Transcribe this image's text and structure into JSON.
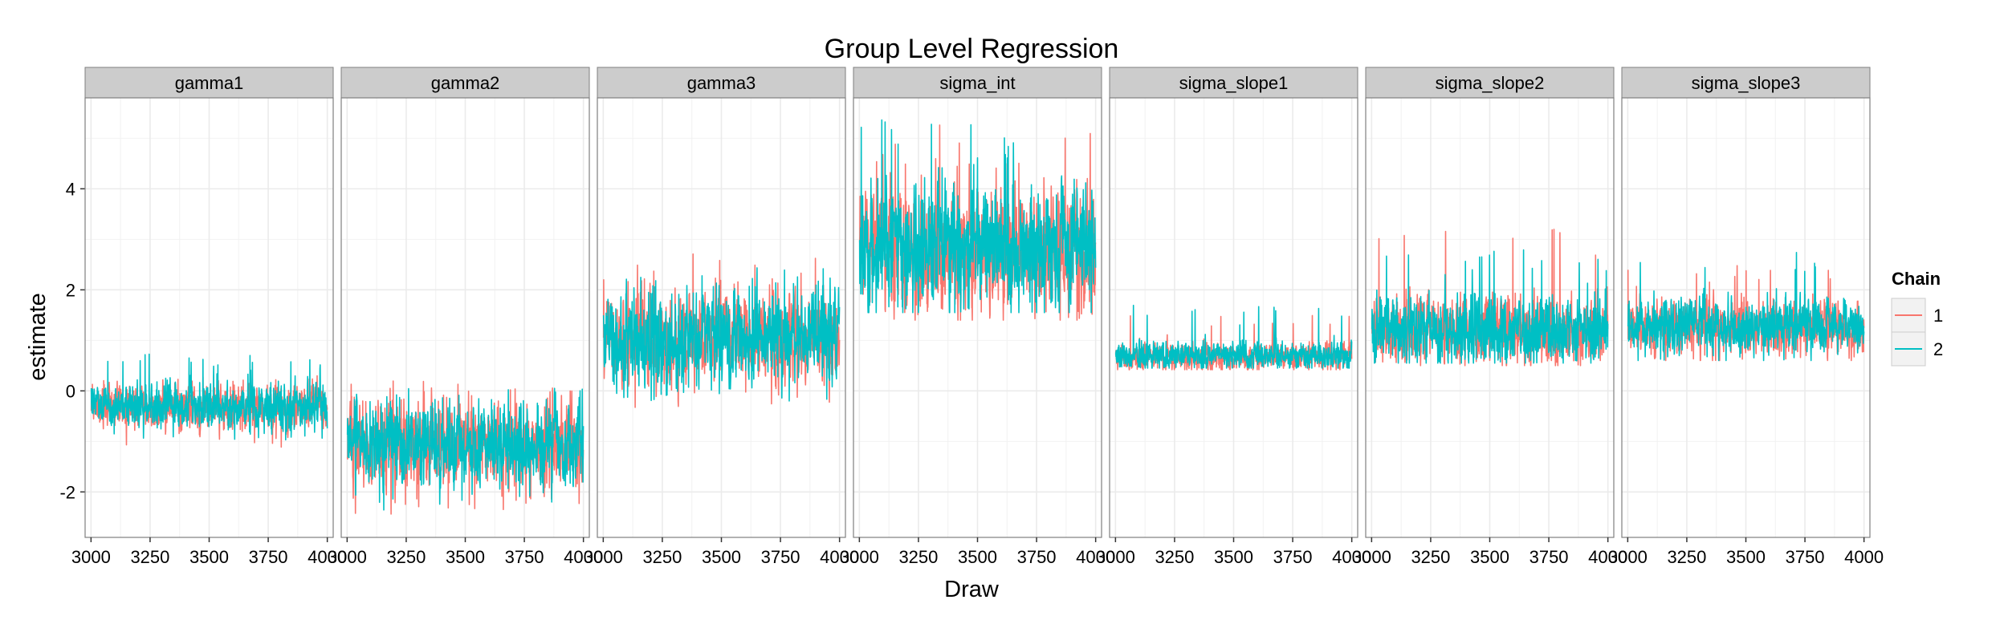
{
  "chart_data": {
    "type": "line",
    "title": "Group Level Regression",
    "xlabel": "Draw",
    "ylabel": "estimate",
    "xlim": [
      2975,
      4025
    ],
    "ylim": [
      -2.9,
      5.8
    ],
    "x_ticks": [
      3000,
      3250,
      3500,
      3750,
      4000
    ],
    "x_tick_labels": [
      "3000",
      "3250",
      "3500",
      "3750",
      "4000"
    ],
    "y_ticks": [
      -2,
      0,
      2,
      4
    ],
    "y_tick_labels": [
      "-2",
      "0",
      "2",
      "4"
    ],
    "grid": true,
    "draws": {
      "start": 3001,
      "end": 4000
    },
    "legend": {
      "title": "Chain",
      "position": "right",
      "entries": [
        {
          "label": "1",
          "color": "#F8766D"
        },
        {
          "label": "2",
          "color": "#00BFC4"
        }
      ]
    },
    "panels": [
      {
        "name": "gamma1",
        "chains": [
          {
            "chain": "1",
            "color": "#F8766D",
            "center": -0.32,
            "spread": 0.2,
            "min": -1.15,
            "max": 0.3
          },
          {
            "chain": "2",
            "color": "#00BFC4",
            "center": -0.3,
            "spread": 0.2,
            "min": -1.0,
            "max": 0.75
          }
        ]
      },
      {
        "name": "gamma2",
        "chains": [
          {
            "chain": "1",
            "color": "#F8766D",
            "center": -1.1,
            "spread": 0.38,
            "min": -2.45,
            "max": 0.2
          },
          {
            "chain": "2",
            "color": "#00BFC4",
            "center": -1.1,
            "spread": 0.35,
            "min": -2.5,
            "max": 0.05
          }
        ]
      },
      {
        "name": "gamma3",
        "chains": [
          {
            "chain": "1",
            "color": "#F8766D",
            "center": 1.05,
            "spread": 0.4,
            "min": -0.4,
            "max": 2.8
          },
          {
            "chain": "2",
            "color": "#00BFC4",
            "center": 1.05,
            "spread": 0.42,
            "min": -0.55,
            "max": 2.45
          }
        ]
      },
      {
        "name": "sigma_int",
        "chains": [
          {
            "chain": "1",
            "color": "#F8766D",
            "center": 2.75,
            "spread": 0.55,
            "min": 1.4,
            "max": 5.3
          },
          {
            "chain": "2",
            "color": "#00BFC4",
            "center": 2.8,
            "spread": 0.55,
            "min": 1.55,
            "max": 5.4
          }
        ]
      },
      {
        "name": "sigma_slope1",
        "chains": [
          {
            "chain": "1",
            "color": "#F8766D",
            "center": 0.68,
            "spread": 0.12,
            "min": 0.42,
            "max": 1.5
          },
          {
            "chain": "2",
            "color": "#00BFC4",
            "center": 0.7,
            "spread": 0.13,
            "min": 0.45,
            "max": 1.7
          }
        ]
      },
      {
        "name": "sigma_slope2",
        "chains": [
          {
            "chain": "1",
            "color": "#F8766D",
            "center": 1.2,
            "spread": 0.3,
            "min": 0.5,
            "max": 3.2
          },
          {
            "chain": "2",
            "color": "#00BFC4",
            "center": 1.2,
            "spread": 0.3,
            "min": 0.55,
            "max": 2.8
          }
        ]
      },
      {
        "name": "sigma_slope3",
        "chains": [
          {
            "chain": "1",
            "color": "#F8766D",
            "center": 1.25,
            "spread": 0.25,
            "min": 0.6,
            "max": 2.6
          },
          {
            "chain": "2",
            "color": "#00BFC4",
            "center": 1.28,
            "spread": 0.25,
            "min": 0.6,
            "max": 2.75
          }
        ]
      }
    ]
  }
}
